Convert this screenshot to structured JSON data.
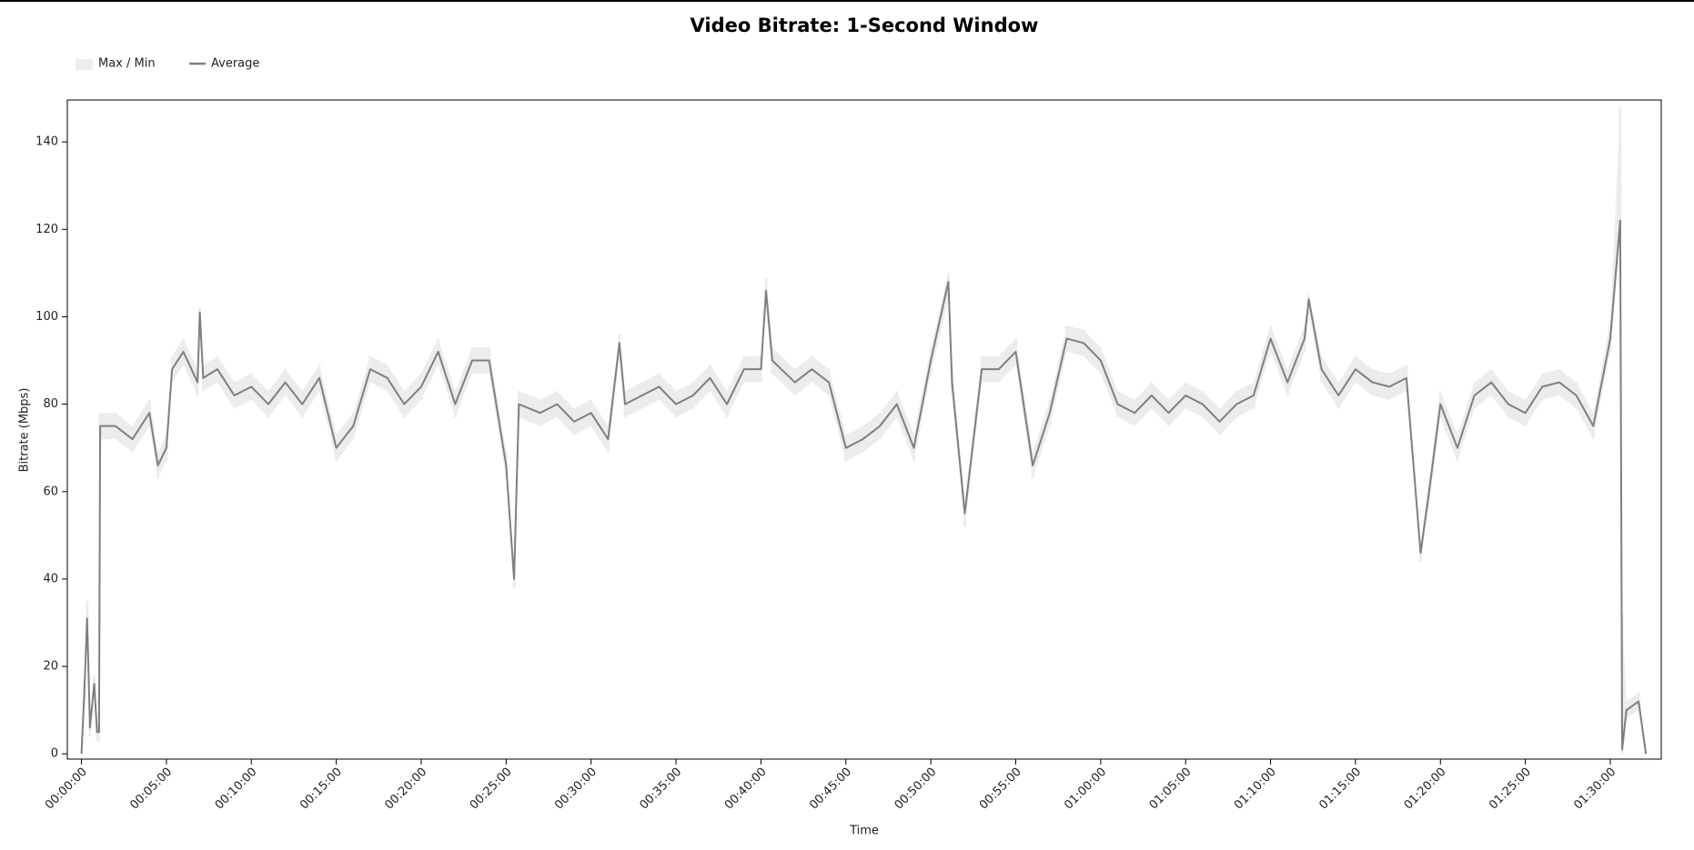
{
  "chart_data": {
    "type": "line",
    "title": "Video Bitrate: 1-Second Window",
    "x_label": "Time",
    "y_label": "Bitrate (Mbps)",
    "xlim": [
      -50,
      5580
    ],
    "ylim": [
      -1.2,
      149.6
    ],
    "xticks": [
      {
        "value": 0,
        "label": "00:00:00"
      },
      {
        "value": 300,
        "label": "00:05:00"
      },
      {
        "value": 600,
        "label": "00:10:00"
      },
      {
        "value": 900,
        "label": "00:15:00"
      },
      {
        "value": 1200,
        "label": "00:20:00"
      },
      {
        "value": 1500,
        "label": "00:25:00"
      },
      {
        "value": 1800,
        "label": "00:30:00"
      },
      {
        "value": 2100,
        "label": "00:35:00"
      },
      {
        "value": 2400,
        "label": "00:40:00"
      },
      {
        "value": 2700,
        "label": "00:45:00"
      },
      {
        "value": 3000,
        "label": "00:50:00"
      },
      {
        "value": 3300,
        "label": "00:55:00"
      },
      {
        "value": 3600,
        "label": "01:00:00"
      },
      {
        "value": 3900,
        "label": "01:05:00"
      },
      {
        "value": 4200,
        "label": "01:10:00"
      },
      {
        "value": 4500,
        "label": "01:15:00"
      },
      {
        "value": 4800,
        "label": "01:20:00"
      },
      {
        "value": 5100,
        "label": "01:25:00"
      },
      {
        "value": 5400,
        "label": "01:30:00"
      }
    ],
    "yticks": [
      0,
      20,
      40,
      60,
      80,
      100,
      120,
      140
    ],
    "x": [
      0,
      10,
      20,
      30,
      45,
      55,
      62,
      66,
      120,
      180,
      240,
      270,
      300,
      320,
      360,
      410,
      418,
      430,
      480,
      540,
      600,
      660,
      720,
      780,
      840,
      900,
      960,
      1020,
      1080,
      1140,
      1200,
      1260,
      1320,
      1380,
      1440,
      1500,
      1528,
      1545,
      1620,
      1680,
      1740,
      1800,
      1860,
      1900,
      1920,
      1980,
      2040,
      2100,
      2160,
      2220,
      2280,
      2340,
      2400,
      2418,
      2440,
      2520,
      2580,
      2640,
      2700,
      2760,
      2820,
      2880,
      2940,
      3000,
      3062,
      3075,
      3120,
      3180,
      3240,
      3300,
      3360,
      3420,
      3480,
      3540,
      3600,
      3660,
      3720,
      3780,
      3840,
      3900,
      3960,
      4020,
      4080,
      4140,
      4200,
      4260,
      4320,
      4335,
      4380,
      4440,
      4500,
      4560,
      4620,
      4680,
      4730,
      4760,
      4800,
      4860,
      4920,
      4980,
      5040,
      5100,
      5160,
      5220,
      5280,
      5340,
      5400,
      5435,
      5442,
      5457,
      5500,
      5526
    ],
    "series": [
      {
        "name": "Max / Min",
        "color": "#ececec",
        "upper": [
          0,
          16,
          35,
          8,
          18,
          7,
          7,
          78,
          78,
          75,
          81,
          69,
          73,
          91,
          95,
          88,
          102,
          89,
          91,
          85,
          87,
          83,
          88,
          83,
          89,
          73,
          78,
          91,
          89,
          83,
          87,
          95,
          83,
          93,
          93,
          69,
          42,
          83,
          81,
          83,
          79,
          81,
          75,
          96,
          83,
          85,
          87,
          83,
          85,
          89,
          83,
          91,
          91,
          109,
          93,
          88,
          91,
          88,
          73,
          75,
          78,
          83,
          73,
          93,
          110,
          88,
          58,
          91,
          91,
          95,
          69,
          81,
          98,
          97,
          93,
          83,
          81,
          85,
          81,
          85,
          83,
          79,
          83,
          85,
          98,
          88,
          98,
          105,
          91,
          85,
          91,
          88,
          87,
          89,
          48,
          63,
          83,
          73,
          85,
          88,
          83,
          81,
          87,
          88,
          85,
          78,
          99,
          148,
          32,
          12,
          14,
          1
        ],
        "lower": [
          0,
          12,
          28,
          4,
          14,
          3,
          3,
          72,
          72,
          69,
          75,
          63,
          67,
          85,
          89,
          82,
          98,
          83,
          85,
          79,
          81,
          77,
          82,
          77,
          83,
          67,
          72,
          85,
          83,
          77,
          81,
          89,
          77,
          87,
          87,
          63,
          38,
          77,
          75,
          77,
          73,
          75,
          69,
          90,
          77,
          79,
          81,
          77,
          79,
          83,
          77,
          85,
          85,
          102,
          87,
          82,
          85,
          82,
          67,
          69,
          72,
          77,
          67,
          87,
          104,
          82,
          52,
          85,
          85,
          89,
          63,
          75,
          92,
          91,
          87,
          77,
          75,
          79,
          75,
          79,
          77,
          73,
          77,
          79,
          92,
          82,
          92,
          101,
          85,
          79,
          85,
          82,
          81,
          83,
          44,
          57,
          77,
          67,
          79,
          82,
          77,
          75,
          81,
          82,
          79,
          72,
          92,
          118,
          0,
          8,
          10,
          0
        ]
      },
      {
        "name": "Average",
        "color": "#7f7f7f",
        "values": [
          0,
          14,
          31,
          6,
          16,
          5,
          5,
          75,
          75,
          72,
          78,
          66,
          70,
          88,
          92,
          85,
          101,
          86,
          88,
          82,
          84,
          80,
          85,
          80,
          86,
          70,
          75,
          88,
          86,
          80,
          84,
          92,
          80,
          90,
          90,
          66,
          40,
          80,
          78,
          80,
          76,
          78,
          72,
          94,
          80,
          82,
          84,
          80,
          82,
          86,
          80,
          88,
          88,
          106,
          90,
          85,
          88,
          85,
          70,
          72,
          75,
          80,
          70,
          90,
          108,
          85,
          55,
          88,
          88,
          92,
          66,
          78,
          95,
          94,
          90,
          80,
          78,
          82,
          78,
          82,
          80,
          76,
          80,
          82,
          95,
          85,
          95,
          104,
          88,
          82,
          88,
          85,
          84,
          86,
          46,
          60,
          80,
          70,
          82,
          85,
          80,
          78,
          84,
          85,
          82,
          75,
          95,
          122,
          1,
          10,
          12,
          0
        ]
      }
    ]
  }
}
